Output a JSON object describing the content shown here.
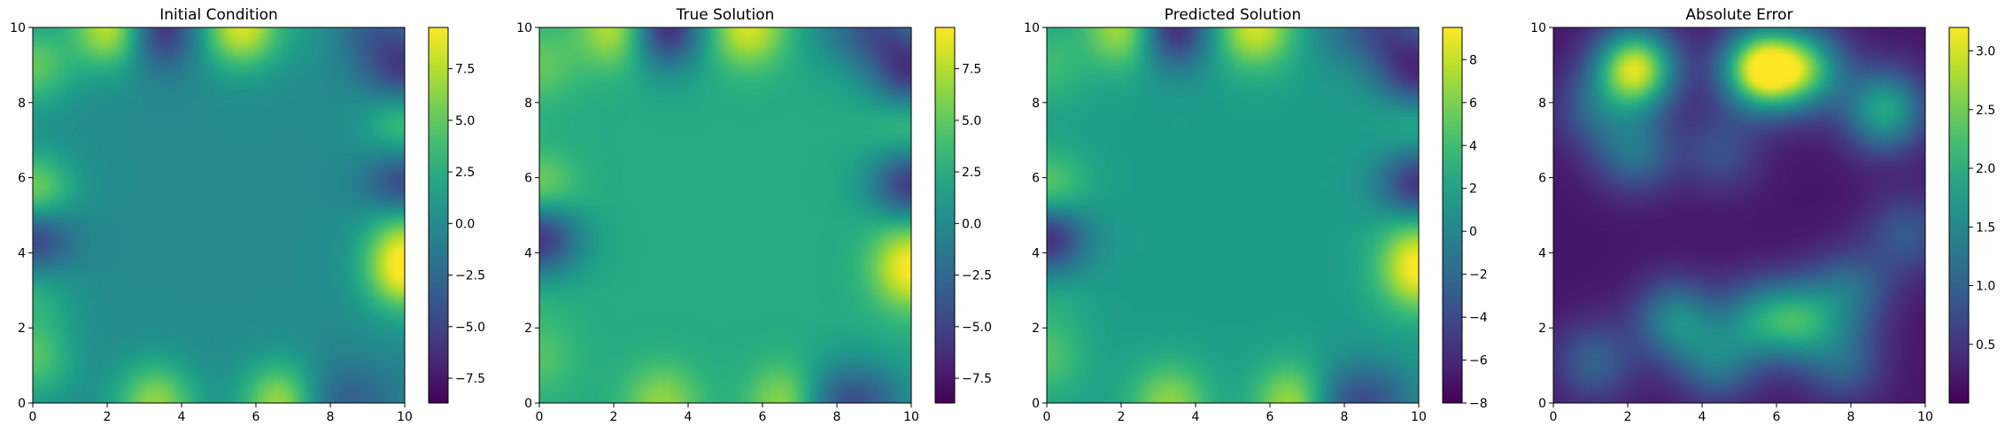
{
  "chart_data": [
    {
      "type": "heatmap",
      "title": "Initial Condition",
      "x_ticks": [
        "0",
        "2",
        "4",
        "6",
        "8",
        "10"
      ],
      "y_ticks": [
        "0",
        "2",
        "4",
        "6",
        "8",
        "10"
      ],
      "xlim": [
        0,
        10
      ],
      "ylim": [
        0,
        10
      ],
      "colorbar": {
        "range": [
          -8.7,
          9.5
        ],
        "ticks": [
          -7.5,
          -5.0,
          -2.5,
          0.0,
          2.5,
          5.0,
          7.5
        ],
        "tick_labels": [
          "−7.5",
          "−5.0",
          "−2.5",
          "0.0",
          "2.5",
          "5.0",
          "7.5"
        ]
      },
      "colormap": "viridis",
      "sources": [
        {
          "x": 2.2,
          "y": 10,
          "v": 9.5
        },
        {
          "x": 3.3,
          "y": 10,
          "v": -8.0
        },
        {
          "x": 5.6,
          "y": 10,
          "v": 8.5
        },
        {
          "x": 7.8,
          "y": 10,
          "v": 1.0
        },
        {
          "x": 9.0,
          "y": 10,
          "v": -3.0
        },
        {
          "x": 3.3,
          "y": 0,
          "v": 6.5
        },
        {
          "x": 6.7,
          "y": 0,
          "v": 7.5
        },
        {
          "x": 7.8,
          "y": 0,
          "v": -3.0
        },
        {
          "x": 9.0,
          "y": 0,
          "v": -2.0
        },
        {
          "x": 0,
          "y": 1.2,
          "v": 4.5
        },
        {
          "x": 0,
          "y": 3.0,
          "v": 3.0
        },
        {
          "x": 0,
          "y": 4.5,
          "v": -7.5
        },
        {
          "x": 0,
          "y": 5.5,
          "v": 7.5
        },
        {
          "x": 0,
          "y": 9.0,
          "v": 5.0
        },
        {
          "x": 10,
          "y": 3.5,
          "v": 9.0
        },
        {
          "x": 10,
          "y": 4.8,
          "v": 5.5
        },
        {
          "x": 10,
          "y": 5.7,
          "v": -7.0
        },
        {
          "x": 10,
          "y": 7.5,
          "v": 5.0
        },
        {
          "x": 10,
          "y": 8.8,
          "v": -6.0
        }
      ],
      "background": 0.0
    },
    {
      "type": "heatmap",
      "title": "True Solution",
      "x_ticks": [
        "0",
        "2",
        "4",
        "6",
        "8",
        "10"
      ],
      "y_ticks": [
        "0",
        "2",
        "4",
        "6",
        "8",
        "10"
      ],
      "xlim": [
        0,
        10
      ],
      "ylim": [
        0,
        10
      ],
      "colorbar": {
        "range": [
          -8.7,
          9.5
        ],
        "ticks": [
          -7.5,
          -5.0,
          -2.5,
          0.0,
          2.5,
          5.0,
          7.5
        ],
        "tick_labels": [
          "−7.5",
          "−5.0",
          "−2.5",
          "0.0",
          "2.5",
          "5.0",
          "7.5"
        ]
      },
      "colormap": "viridis",
      "sources": [
        {
          "x": 2.2,
          "y": 10,
          "v": 9.5
        },
        {
          "x": 3.3,
          "y": 10,
          "v": -8.0
        },
        {
          "x": 5.6,
          "y": 10,
          "v": 8.5
        },
        {
          "x": 7.8,
          "y": 10,
          "v": 0.5
        },
        {
          "x": 9.0,
          "y": 10,
          "v": -3.0
        },
        {
          "x": 3.3,
          "y": 0,
          "v": 6.5
        },
        {
          "x": 6.7,
          "y": 0,
          "v": 7.5
        },
        {
          "x": 7.8,
          "y": 0,
          "v": -3.0
        },
        {
          "x": 9.0,
          "y": 0,
          "v": -2.0
        },
        {
          "x": 0,
          "y": 1.2,
          "v": 4.5
        },
        {
          "x": 0,
          "y": 3.0,
          "v": 3.0
        },
        {
          "x": 0,
          "y": 4.5,
          "v": -7.5
        },
        {
          "x": 0,
          "y": 5.5,
          "v": 7.5
        },
        {
          "x": 0,
          "y": 9.0,
          "v": 5.0
        },
        {
          "x": 10,
          "y": 3.5,
          "v": 9.0
        },
        {
          "x": 10,
          "y": 4.8,
          "v": 5.5
        },
        {
          "x": 10,
          "y": 5.7,
          "v": -7.0
        },
        {
          "x": 10,
          "y": 7.5,
          "v": 5.0
        },
        {
          "x": 10,
          "y": 8.8,
          "v": -6.0
        }
      ],
      "background": 2.2
    },
    {
      "type": "heatmap",
      "title": "Predicted Solution",
      "x_ticks": [
        "0",
        "2",
        "4",
        "6",
        "8",
        "10"
      ],
      "y_ticks": [
        "0",
        "2",
        "4",
        "6",
        "8",
        "10"
      ],
      "xlim": [
        0,
        10
      ],
      "ylim": [
        0,
        10
      ],
      "colorbar": {
        "range": [
          -8.0,
          9.5
        ],
        "ticks": [
          -8,
          -6,
          -4,
          -2,
          0,
          2,
          4,
          6,
          8
        ],
        "tick_labels": [
          "−8",
          "−6",
          "−4",
          "−2",
          "0",
          "2",
          "4",
          "6",
          "8"
        ]
      },
      "colormap": "viridis",
      "sources": [
        {
          "x": 2.2,
          "y": 10,
          "v": 9.0
        },
        {
          "x": 3.3,
          "y": 10,
          "v": -7.5
        },
        {
          "x": 5.6,
          "y": 10,
          "v": 8.5
        },
        {
          "x": 7.8,
          "y": 10,
          "v": 0.0
        },
        {
          "x": 9.0,
          "y": 10,
          "v": -3.0
        },
        {
          "x": 3.3,
          "y": 0,
          "v": 6.5
        },
        {
          "x": 6.7,
          "y": 0,
          "v": 8.0
        },
        {
          "x": 7.8,
          "y": 0,
          "v": -3.0
        },
        {
          "x": 9.0,
          "y": 0,
          "v": -2.0
        },
        {
          "x": 0,
          "y": 1.2,
          "v": 4.5
        },
        {
          "x": 0,
          "y": 3.0,
          "v": 3.0
        },
        {
          "x": 0,
          "y": 4.5,
          "v": -7.5
        },
        {
          "x": 0,
          "y": 5.5,
          "v": 7.0
        },
        {
          "x": 0,
          "y": 9.0,
          "v": 4.0
        },
        {
          "x": 10,
          "y": 3.5,
          "v": 9.0
        },
        {
          "x": 10,
          "y": 4.8,
          "v": 5.5
        },
        {
          "x": 10,
          "y": 5.7,
          "v": -7.0
        },
        {
          "x": 10,
          "y": 7.5,
          "v": 4.0
        },
        {
          "x": 10,
          "y": 8.8,
          "v": -6.0
        }
      ],
      "background": 1.6
    },
    {
      "type": "heatmap",
      "title": "Absolute Error",
      "x_ticks": [
        "0",
        "2",
        "4",
        "6",
        "8",
        "10"
      ],
      "y_ticks": [
        "0",
        "2",
        "4",
        "6",
        "8",
        "10"
      ],
      "xlim": [
        0,
        10
      ],
      "ylim": [
        0,
        10
      ],
      "colorbar": {
        "range": [
          0.0,
          3.2
        ],
        "ticks": [
          0.5,
          1.0,
          1.5,
          2.0,
          2.5,
          3.0
        ],
        "tick_labels": [
          "0.5",
          "1.0",
          "1.5",
          "2.0",
          "2.5",
          "3.0"
        ]
      },
      "colormap": "viridis",
      "sources": [
        {
          "x": 2.2,
          "y": 8.9,
          "v": 3.0
        },
        {
          "x": 5.6,
          "y": 8.9,
          "v": 3.2
        },
        {
          "x": 6.8,
          "y": 8.9,
          "v": 2.0
        },
        {
          "x": 8.9,
          "y": 7.8,
          "v": 1.9
        },
        {
          "x": 2.2,
          "y": 6.7,
          "v": 1.2
        },
        {
          "x": 1.1,
          "y": 7.8,
          "v": 0.9
        },
        {
          "x": 4.5,
          "y": 6.7,
          "v": 0.8
        },
        {
          "x": 3.3,
          "y": 2.2,
          "v": 1.5
        },
        {
          "x": 5.5,
          "y": 2.2,
          "v": 1.4
        },
        {
          "x": 6.7,
          "y": 2.2,
          "v": 1.7
        },
        {
          "x": 8.0,
          "y": 3.0,
          "v": 1.1
        },
        {
          "x": 1.1,
          "y": 1.1,
          "v": 1.0
        },
        {
          "x": 4.4,
          "y": 1.1,
          "v": 1.2
        },
        {
          "x": 7.8,
          "y": 1.1,
          "v": 1.0
        },
        {
          "x": 9.5,
          "y": 4.5,
          "v": 0.9
        }
      ],
      "background": 0.2
    }
  ]
}
